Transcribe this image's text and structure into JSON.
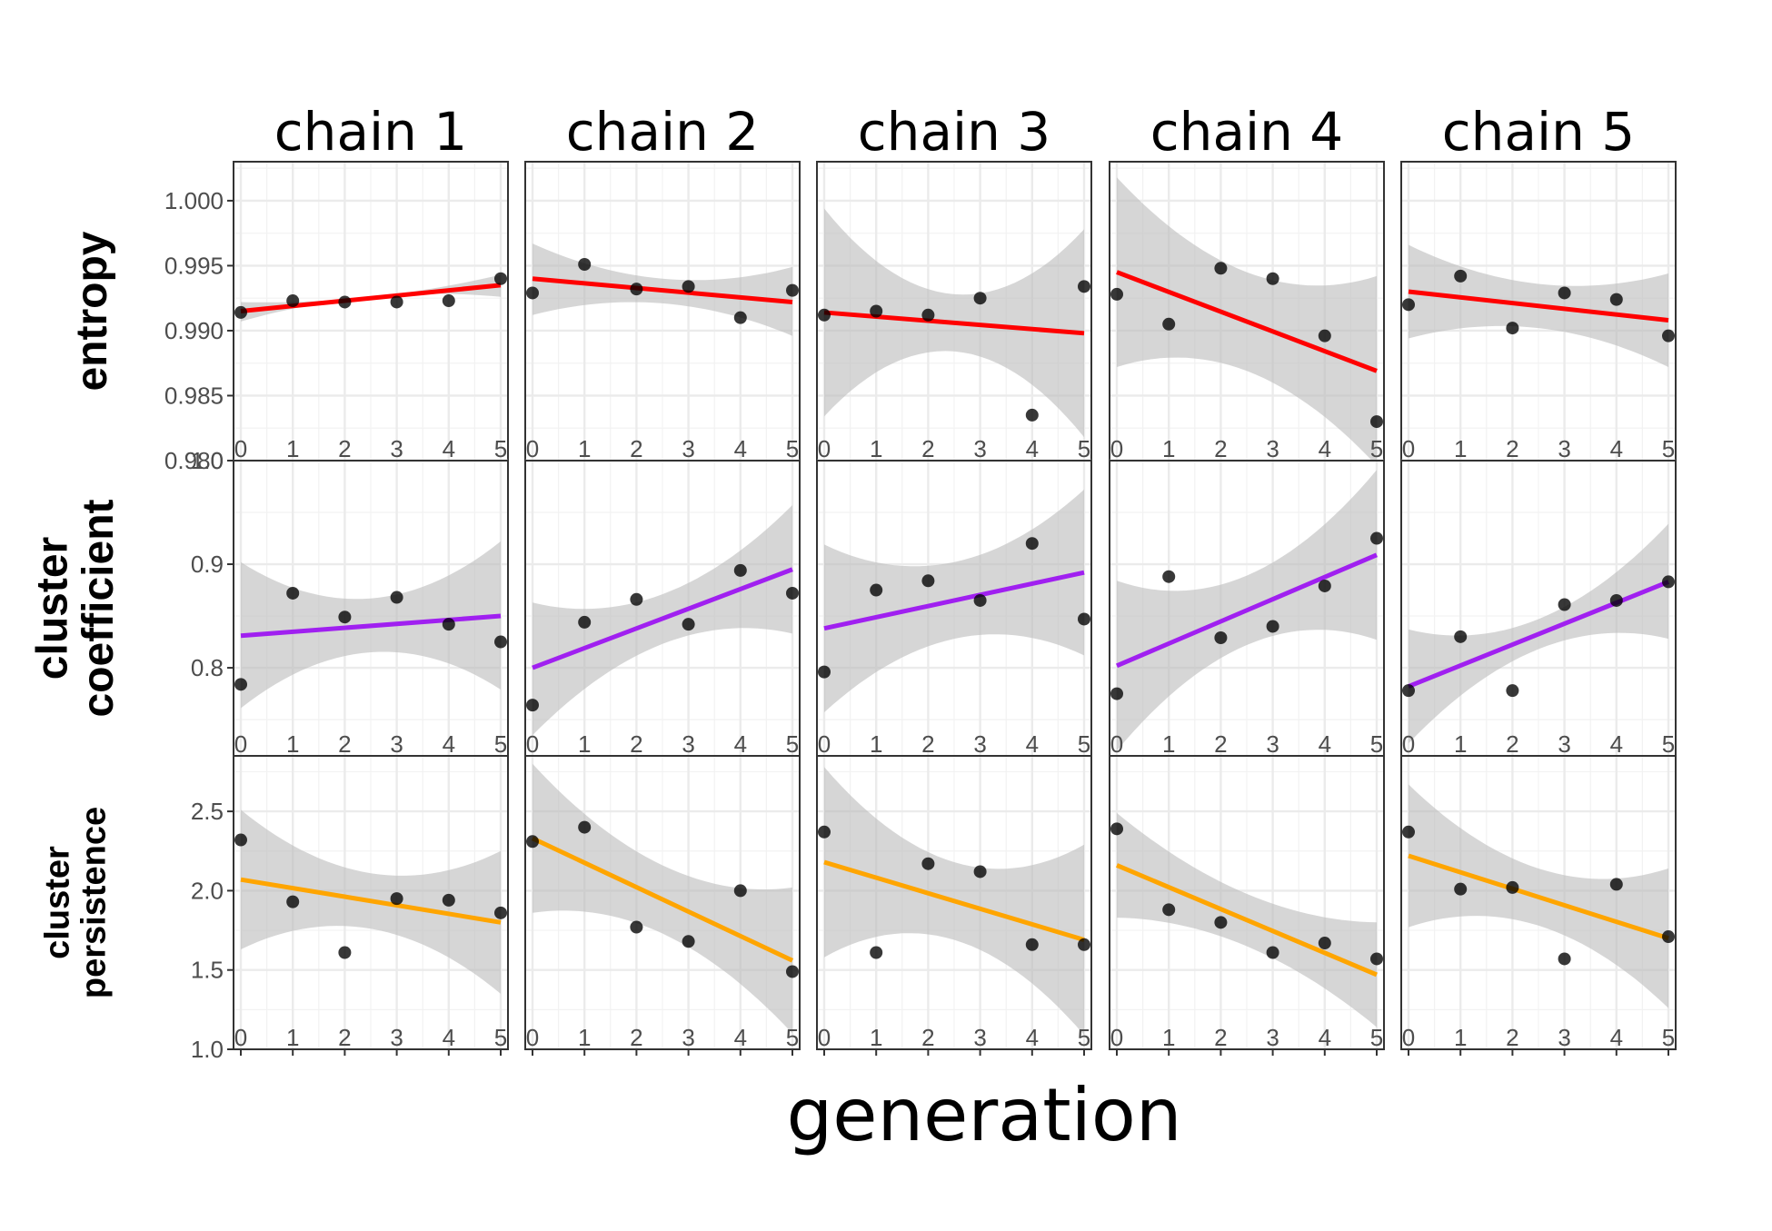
{
  "chart_data": {
    "type": "scatter",
    "layout": "facet-grid",
    "xlabel": "generation",
    "columns": [
      "chain 1",
      "chain 2",
      "chain 3",
      "chain 4",
      "chain 5"
    ],
    "x": [
      0,
      1,
      2,
      3,
      4,
      5
    ],
    "x_ticks": [
      "0",
      "1",
      "2",
      "3",
      "4",
      "5"
    ],
    "rows": [
      {
        "label": [
          "entropy"
        ],
        "ylim": [
          0.98,
          1.003
        ],
        "y_ticks": [
          0.98,
          0.985,
          0.99,
          0.995,
          1.0
        ],
        "y_tick_labels": [
          "0.980",
          "0.985",
          "0.990",
          "0.995",
          "1.000"
        ],
        "line_color": "#ff0000",
        "series": [
          {
            "chain": "chain 1",
            "values": [
              0.9914,
              0.9923,
              0.9922,
              0.9922,
              0.9923,
              0.994
            ],
            "fit": [
              0.9915,
              0.9935
            ],
            "band_lower": [
              0.9907,
              0.9926,
              0.9926
            ],
            "band_upper": [
              0.9922,
              0.9926,
              0.9943
            ]
          },
          {
            "chain": "chain 2",
            "values": [
              0.9929,
              0.9951,
              0.9932,
              0.9934,
              0.991,
              0.9931
            ],
            "fit": [
              0.994,
              0.9922
            ],
            "band_lower": [
              0.9912,
              0.9921,
              0.9896
            ],
            "band_upper": [
              0.9967,
              0.994,
              0.9949
            ]
          },
          {
            "chain": "chain 3",
            "values": [
              0.9912,
              0.9915,
              0.9912,
              0.9925,
              0.9835,
              0.9934
            ],
            "fit": [
              0.9914,
              0.9898
            ],
            "band_lower": [
              0.9834,
              0.9884,
              0.9818
            ],
            "band_upper": [
              0.9994,
              0.9928,
              0.9978
            ]
          },
          {
            "chain": "chain 4",
            "values": [
              0.9928,
              0.9905,
              0.9948,
              0.994,
              0.9896,
              0.983
            ],
            "fit": [
              0.9945,
              0.9869
            ],
            "band_lower": [
              0.9872,
              0.9869,
              0.9796
            ],
            "band_upper": [
              1.0018,
              0.9945,
              0.9942
            ]
          },
          {
            "chain": "chain 5",
            "values": [
              0.992,
              0.9942,
              0.9902,
              0.9929,
              0.9924,
              0.9896
            ],
            "fit": [
              0.993,
              0.9908
            ],
            "band_lower": [
              0.9894,
              0.9902,
              0.9872
            ],
            "band_upper": [
              0.9966,
              0.9936,
              0.9944
            ]
          }
        ]
      },
      {
        "label": [
          "cluster",
          "coefficient"
        ],
        "ylim": [
          0.715,
          1.0
        ],
        "y_ticks": [
          0.8,
          0.9,
          1.0
        ],
        "y_tick_labels": [
          "0.8",
          "0.9",
          "1.0"
        ],
        "line_color": "#a020f0",
        "series": [
          {
            "chain": "chain 1",
            "values": [
              0.784,
              0.872,
              0.849,
              0.868,
              0.842,
              0.825
            ],
            "fit": [
              0.831,
              0.85
            ],
            "band_lower": [
              0.761,
              0.815,
              0.779
            ],
            "band_upper": [
              0.902,
              0.867,
              0.922
            ]
          },
          {
            "chain": "chain 2",
            "values": [
              0.764,
              0.844,
              0.866,
              0.842,
              0.894,
              0.872
            ],
            "fit": [
              0.8,
              0.895
            ],
            "band_lower": [
              0.735,
              0.823,
              0.833
            ],
            "band_upper": [
              0.863,
              0.871,
              0.957
            ]
          },
          {
            "chain": "chain 3",
            "values": [
              0.796,
              0.875,
              0.884,
              0.865,
              0.92,
              0.847
            ],
            "fit": [
              0.838,
              0.892
            ],
            "band_lower": [
              0.757,
              0.828,
              0.812
            ],
            "band_upper": [
              0.919,
              0.902,
              0.972
            ]
          },
          {
            "chain": "chain 4",
            "values": [
              0.775,
              0.888,
              0.829,
              0.84,
              0.879,
              0.925
            ],
            "fit": [
              0.802,
              0.909
            ],
            "band_lower": [
              0.72,
              0.822,
              0.827
            ],
            "band_upper": [
              0.884,
              0.889,
              0.991
            ]
          },
          {
            "chain": "chain 5",
            "values": [
              0.778,
              0.83,
              0.778,
              0.861,
              0.865,
              0.883
            ],
            "fit": [
              0.782,
              0.883
            ],
            "band_lower": [
              0.727,
              0.818,
              0.828
            ],
            "band_upper": [
              0.837,
              0.847,
              0.939
            ]
          }
        ]
      },
      {
        "label": [
          "cluster",
          "persistence"
        ],
        "ylim": [
          1.0,
          2.85
        ],
        "y_ticks": [
          1.0,
          1.5,
          2.0,
          2.5
        ],
        "y_tick_labels": [
          "1.0",
          "1.5",
          "2.0",
          "2.5"
        ],
        "line_color": "#ffa500",
        "series": [
          {
            "chain": "chain 1",
            "values": [
              2.32,
              1.93,
              1.61,
              1.95,
              1.94,
              1.86
            ],
            "fit": [
              2.07,
              1.8
            ],
            "band_lower": [
              1.63,
              1.76,
              1.35
            ],
            "band_upper": [
              2.51,
              2.11,
              2.25
            ]
          },
          {
            "chain": "chain 2",
            "values": [
              2.31,
              2.4,
              1.77,
              1.68,
              2.0,
              1.49
            ],
            "fit": [
              2.33,
              1.56
            ],
            "band_lower": [
              1.86,
              1.73,
              1.1
            ],
            "band_upper": [
              2.8,
              2.16,
              2.02
            ]
          },
          {
            "chain": "chain 3",
            "values": [
              2.37,
              1.61,
              2.17,
              2.12,
              1.66,
              1.66
            ],
            "fit": [
              2.18,
              1.69
            ],
            "band_lower": [
              1.58,
              1.69,
              1.09
            ],
            "band_upper": [
              2.78,
              2.18,
              2.29
            ]
          },
          {
            "chain": "chain 4",
            "values": [
              2.39,
              1.88,
              1.8,
              1.61,
              1.67,
              1.57
            ],
            "fit": [
              2.16,
              1.47
            ],
            "band_lower": [
              1.83,
              1.65,
              1.14
            ],
            "band_upper": [
              2.49,
              1.98,
              1.8
            ]
          },
          {
            "chain": "chain 5",
            "values": [
              2.37,
              2.01,
              2.02,
              1.57,
              2.04,
              1.71
            ],
            "fit": [
              2.22,
              1.7
            ],
            "band_lower": [
              1.77,
              1.78,
              1.26
            ],
            "band_upper": [
              2.67,
              2.14,
              2.14
            ]
          }
        ]
      }
    ]
  }
}
